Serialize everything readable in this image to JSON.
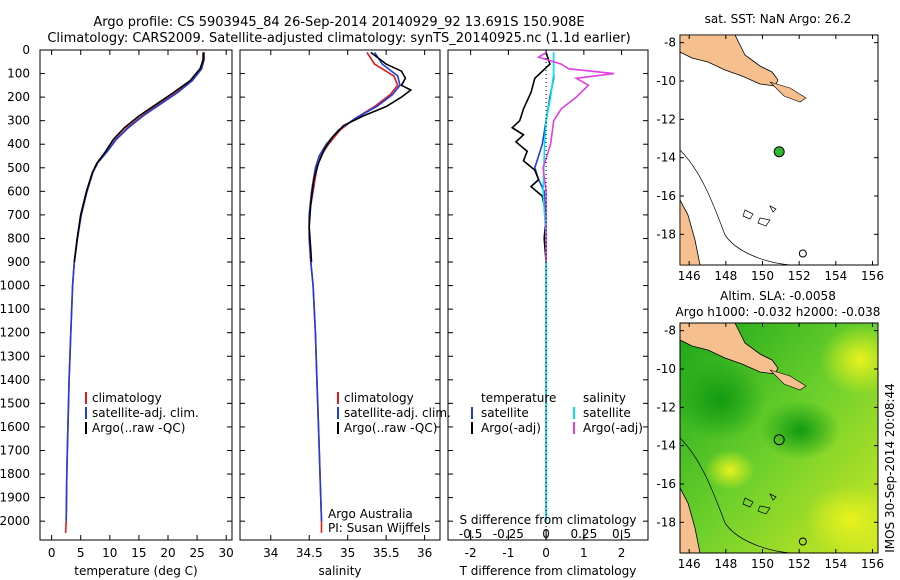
{
  "header": {
    "line1": "Argo profile: CS 5903945_84 26-Sep-2014 20140929_92 13.691S 150.908E",
    "line2": "Climatology: CARS2009. Satellite-adjusted climatology: synTS_20140925.nc (1.1d earlier)"
  },
  "timestamp": "IMOS 30-Sep-2014 20:08:44",
  "colors": {
    "climatology": "#e41a1c",
    "satellite": "#1f3fd9",
    "argo": "#000000",
    "sal_sat": "#00e5ee",
    "sal_argo": "#e040e0",
    "land": "#f5c08e",
    "sea_green": "#2fb82f",
    "sea_yellow": "#d8f020"
  },
  "chart_data": [
    {
      "type": "line",
      "id": "temperature",
      "xlabel": "temperature (deg C)",
      "xlim": [
        -2,
        31
      ],
      "xticks": [
        "0",
        "5",
        "10",
        "15",
        "20",
        "25",
        "30"
      ],
      "ylim": [
        0,
        2080
      ],
      "yticks": [
        "0",
        "100",
        "200",
        "300",
        "400",
        "500",
        "600",
        "700",
        "800",
        "900",
        "1000",
        "1100",
        "1200",
        "1300",
        "1400",
        "1500",
        "1600",
        "1700",
        "1800",
        "1900",
        "2000"
      ],
      "series": [
        {
          "name": "climatology",
          "points": [
            [
              26,
              10
            ],
            [
              26,
              40
            ],
            [
              25.6,
              80
            ],
            [
              24,
              130
            ],
            [
              21.5,
              180
            ],
            [
              18.5,
              230
            ],
            [
              15.5,
              280
            ],
            [
              13,
              330
            ],
            [
              11,
              380
            ],
            [
              9.5,
              430
            ],
            [
              7.8,
              480
            ],
            [
              7,
              520
            ],
            [
              6,
              600
            ],
            [
              5,
              700
            ],
            [
              4.4,
              800
            ],
            [
              3.9,
              900
            ],
            [
              3.6,
              1000
            ],
            [
              3.3,
              1200
            ],
            [
              3,
              1400
            ],
            [
              2.8,
              1600
            ],
            [
              2.6,
              1800
            ],
            [
              2.5,
              2000
            ],
            [
              2.4,
              2050
            ]
          ]
        },
        {
          "name": "satellite-adj. clim.",
          "points": [
            [
              26.2,
              10
            ],
            [
              26.2,
              40
            ],
            [
              25.8,
              80
            ],
            [
              24.2,
              130
            ],
            [
              21.7,
              180
            ],
            [
              18.7,
              230
            ],
            [
              15.7,
              280
            ],
            [
              13.2,
              330
            ],
            [
              11.1,
              380
            ],
            [
              9.6,
              430
            ],
            [
              7.9,
              480
            ],
            [
              7.1,
              520
            ],
            [
              6.1,
              600
            ],
            [
              5.1,
              700
            ],
            [
              4.45,
              800
            ],
            [
              3.9,
              900
            ],
            [
              3.6,
              1000
            ],
            [
              3.3,
              1200
            ],
            [
              3,
              1400
            ],
            [
              2.8,
              1600
            ],
            [
              2.6,
              1800
            ],
            [
              2.5,
              2000
            ]
          ]
        },
        {
          "name": "Argo(..raw -QC)",
          "points": [
            [
              26.1,
              10
            ],
            [
              26.1,
              40
            ],
            [
              25.5,
              80
            ],
            [
              23.8,
              130
            ],
            [
              21,
              180
            ],
            [
              18,
              230
            ],
            [
              15,
              280
            ],
            [
              12.5,
              330
            ],
            [
              10.6,
              380
            ],
            [
              9.3,
              430
            ],
            [
              7.8,
              480
            ],
            [
              7,
              520
            ],
            [
              6,
              600
            ],
            [
              5,
              700
            ],
            [
              4.4,
              800
            ],
            [
              3.9,
              900
            ]
          ]
        }
      ],
      "legend": [
        "climatology",
        "satellite-adj. clim.",
        "Argo(..raw -QC)"
      ]
    },
    {
      "type": "line",
      "id": "salinity",
      "xlabel": "salinity",
      "xlim": [
        33.6,
        36.2
      ],
      "xticks": [
        "34",
        "34.5",
        "35",
        "35.5",
        "36"
      ],
      "ylim": [
        0,
        2080
      ],
      "series": [
        {
          "name": "climatology",
          "points": [
            [
              35.25,
              10
            ],
            [
              35.35,
              60
            ],
            [
              35.6,
              110
            ],
            [
              35.65,
              150
            ],
            [
              35.55,
              190
            ],
            [
              35.35,
              240
            ],
            [
              35.1,
              290
            ],
            [
              34.9,
              340
            ],
            [
              34.75,
              400
            ],
            [
              34.65,
              450
            ],
            [
              34.6,
              500
            ],
            [
              34.55,
              600
            ],
            [
              34.5,
              700
            ],
            [
              34.5,
              800
            ],
            [
              34.52,
              900
            ],
            [
              34.55,
              1000
            ],
            [
              34.58,
              1200
            ],
            [
              34.6,
              1400
            ],
            [
              34.62,
              1600
            ],
            [
              34.64,
              1800
            ],
            [
              34.66,
              2000
            ],
            [
              34.66,
              2050
            ]
          ]
        },
        {
          "name": "satellite-adj. clim.",
          "points": [
            [
              35.35,
              10
            ],
            [
              35.45,
              60
            ],
            [
              35.65,
              110
            ],
            [
              35.68,
              150
            ],
            [
              35.58,
              190
            ],
            [
              35.38,
              240
            ],
            [
              35.1,
              290
            ],
            [
              34.88,
              340
            ],
            [
              34.72,
              400
            ],
            [
              34.63,
              450
            ],
            [
              34.58,
              500
            ],
            [
              34.53,
              600
            ],
            [
              34.5,
              700
            ],
            [
              34.5,
              800
            ],
            [
              34.52,
              900
            ],
            [
              34.55,
              1000
            ],
            [
              34.58,
              1200
            ],
            [
              34.6,
              1400
            ],
            [
              34.62,
              1600
            ],
            [
              34.64,
              1800
            ],
            [
              34.66,
              2000
            ]
          ]
        },
        {
          "name": "Argo(..raw -QC)",
          "points": [
            [
              35.3,
              10
            ],
            [
              35.5,
              60
            ],
            [
              35.7,
              90
            ],
            [
              35.75,
              120
            ],
            [
              35.7,
              150
            ],
            [
              35.82,
              170
            ],
            [
              35.7,
              200
            ],
            [
              35.5,
              240
            ],
            [
              35.2,
              280
            ],
            [
              34.95,
              320
            ],
            [
              34.8,
              370
            ],
            [
              34.7,
              420
            ],
            [
              34.62,
              480
            ],
            [
              34.56,
              550
            ],
            [
              34.52,
              650
            ],
            [
              34.5,
              750
            ],
            [
              34.52,
              850
            ],
            [
              34.53,
              900
            ]
          ]
        }
      ],
      "legend": [
        "climatology",
        "satellite-adj. clim.",
        "Argo(..raw -QC)"
      ],
      "credits": [
        "Argo Australia",
        "PI: Susan Wijffels"
      ]
    },
    {
      "type": "line",
      "id": "difference",
      "xlabel_bottom": "T difference from climatology",
      "xlabel_top": "S difference from climatology",
      "xlim": [
        -2.6,
        2.7
      ],
      "xticks": [
        "-2",
        "-1",
        "0",
        "1",
        "2"
      ],
      "top_ticks": [
        "-0.5",
        "-0.25",
        "0",
        "0.25",
        "0.5"
      ],
      "ylim": [
        0,
        2080
      ],
      "legend_groups": [
        {
          "title": "temperature",
          "items": [
            "satellite",
            "Argo(-adj)"
          ]
        },
        {
          "title": "salinity",
          "items": [
            "satellite",
            "Argo(-adj)"
          ]
        }
      ],
      "series": [
        {
          "name": "T satellite",
          "points": [
            [
              0.2,
              10
            ],
            [
              0.2,
              60
            ],
            [
              0.2,
              120
            ],
            [
              0.1,
              200
            ],
            [
              0,
              300
            ],
            [
              -0.1,
              400
            ],
            [
              -0.3,
              500
            ],
            [
              -0.2,
              550
            ],
            [
              -0.05,
              600
            ],
            [
              0,
              800
            ],
            [
              0,
              1000
            ],
            [
              0,
              1500
            ],
            [
              0,
              2000
            ]
          ]
        },
        {
          "name": "T Argo(-adj)",
          "points": [
            [
              0,
              10
            ],
            [
              0.1,
              60
            ],
            [
              -0.3,
              120
            ],
            [
              -0.4,
              180
            ],
            [
              -0.6,
              250
            ],
            [
              -0.7,
              300
            ],
            [
              -0.9,
              330
            ],
            [
              -0.6,
              360
            ],
            [
              -0.8,
              390
            ],
            [
              -0.5,
              430
            ],
            [
              -0.6,
              470
            ],
            [
              -0.3,
              510
            ],
            [
              -0.2,
              550
            ],
            [
              -0.4,
              580
            ],
            [
              -0.1,
              620
            ],
            [
              0,
              700
            ],
            [
              -0.05,
              800
            ],
            [
              0,
              900
            ]
          ]
        },
        {
          "name": "S satellite",
          "points": [
            [
              0.05,
              10
            ],
            [
              0.05,
              100
            ],
            [
              0.03,
              200
            ],
            [
              0,
              300
            ],
            [
              -0.01,
              400
            ],
            [
              -0.02,
              600
            ],
            [
              0,
              800
            ],
            [
              0,
              1200
            ],
            [
              0,
              2000
            ]
          ]
        },
        {
          "name": "S Argo(-adj)",
          "points": [
            [
              0,
              10
            ],
            [
              -0.05,
              30
            ],
            [
              0.1,
              60
            ],
            [
              0.15,
              80
            ],
            [
              0.45,
              100
            ],
            [
              0.2,
              120
            ],
            [
              0.28,
              150
            ],
            [
              0.2,
              200
            ],
            [
              0.1,
              250
            ],
            [
              0.05,
              300
            ],
            [
              0.03,
              400
            ],
            [
              -0.02,
              500
            ],
            [
              0,
              600
            ],
            [
              0,
              700
            ],
            [
              0,
              800
            ],
            [
              0,
              900
            ]
          ]
        }
      ]
    },
    {
      "type": "scatter",
      "id": "sst-map",
      "title": "sat. SST: NaN Argo: 26.2",
      "xlim": [
        145.5,
        156.3
      ],
      "ylim": [
        -19.6,
        -7.6
      ],
      "xticks": [
        "146",
        "148",
        "150",
        "152",
        "154",
        "156"
      ],
      "yticks": [
        "-8",
        "-10",
        "-12",
        "-14",
        "-16",
        "-18"
      ],
      "points": [
        {
          "label": "Argo",
          "lon": 150.91,
          "lat": -13.69
        },
        {
          "label": "previous",
          "lon": 152.2,
          "lat": -19.0
        }
      ]
    },
    {
      "type": "heatmap",
      "id": "sla-map",
      "title1": "Altim. SLA: -0.0058",
      "title2": "Argo h1000: -0.032 h2000: -0.038",
      "xlim": [
        145.5,
        156.3
      ],
      "ylim": [
        -19.6,
        -7.6
      ],
      "xticks": [
        "146",
        "148",
        "150",
        "152",
        "154",
        "156"
      ],
      "yticks": [
        "-8",
        "-10",
        "-12",
        "-14",
        "-16",
        "-18"
      ],
      "points": [
        {
          "label": "Argo",
          "lon": 150.91,
          "lat": -13.69
        },
        {
          "label": "previous",
          "lon": 152.2,
          "lat": -19.0
        }
      ]
    }
  ]
}
